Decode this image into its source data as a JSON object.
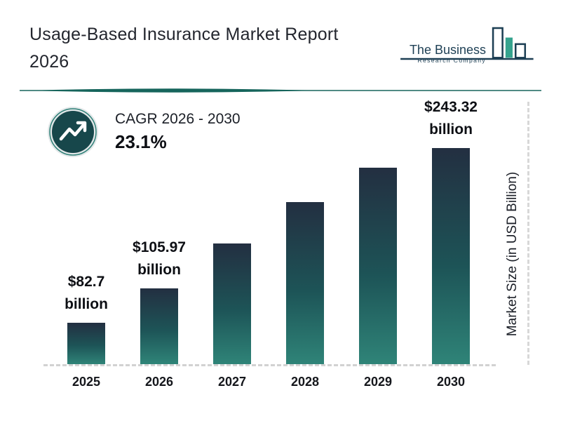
{
  "header": {
    "title_line1": "Usage-Based Insurance Market Report",
    "title_line2": "2026",
    "logo": {
      "name_line1": "The Business",
      "name_line2": "Research Company"
    }
  },
  "cagr": {
    "label": "CAGR 2026 - 2030",
    "value": "23.1%"
  },
  "chart_data": {
    "type": "bar",
    "title": "Usage-Based Insurance Market Report 2026",
    "categories": [
      "2025",
      "2026",
      "2027",
      "2028",
      "2029",
      "2030"
    ],
    "values": [
      82.7,
      105.97,
      130.4,
      160.6,
      197.7,
      243.32
    ],
    "values_estimated": [
      false,
      false,
      true,
      true,
      true,
      false
    ],
    "bar_height_fraction": [
      0.19,
      0.35,
      0.56,
      0.75,
      0.91,
      1.0
    ],
    "labeled_points": [
      {
        "category": "2025",
        "line1": "$82.7",
        "line2": "billion"
      },
      {
        "category": "2026",
        "line1": "$105.97",
        "line2": "billion"
      },
      {
        "category": "2030",
        "line1": "$243.32",
        "line2": "billion"
      }
    ],
    "xlabel": "",
    "ylabel": "Market Size (in USD Billion)",
    "annotation": "CAGR 2026 - 2030: 23.1%",
    "legend": "none",
    "grid": false
  },
  "colors": {
    "bar_top": "#232f41",
    "bar_mid": "#1d5457",
    "bar_bottom": "#2f8478",
    "divider_teal": "#16655c",
    "logo_navy": "#1d3f54",
    "logo_teal": "#35a38e",
    "icon_circle": "#17474b"
  }
}
